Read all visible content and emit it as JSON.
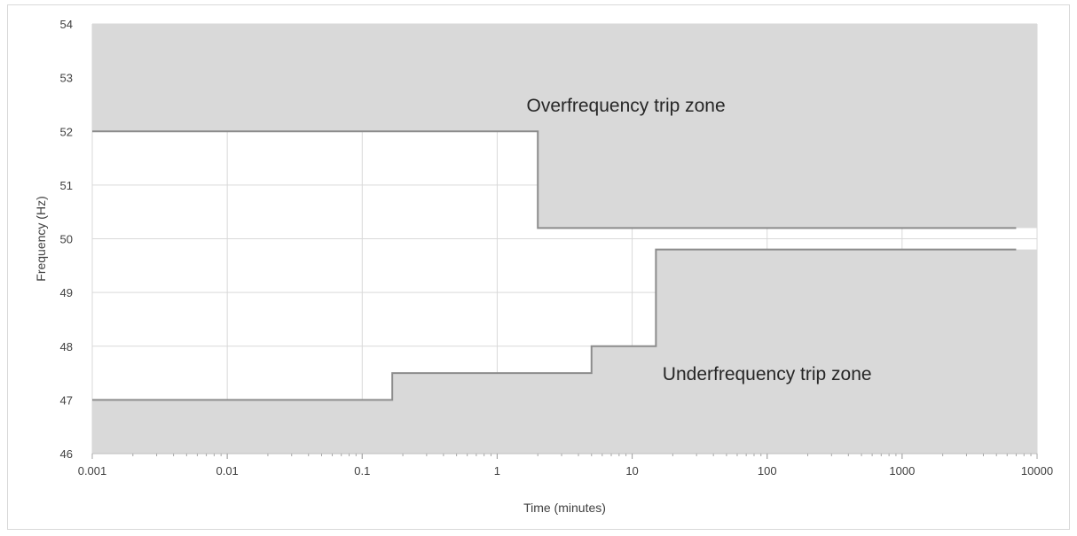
{
  "chart_data": {
    "type": "area",
    "xscale": "log",
    "xlim": [
      0.001,
      10000
    ],
    "ylim": [
      46,
      54
    ],
    "xlabel": "Time (minutes)",
    "ylabel": "Frequency (Hz)",
    "grid": true,
    "x_ticks": [
      "0.001",
      "0.01",
      "0.1",
      "1",
      "10",
      "100",
      "1000",
      "10000"
    ],
    "y_ticks": [
      "46",
      "47",
      "48",
      "49",
      "50",
      "51",
      "52",
      "53",
      "54"
    ],
    "series": [
      {
        "points": [
          {
            "x": 0.001,
            "y": 52
          },
          {
            "x": 2,
            "y": 52
          },
          {
            "x": 2,
            "y": 50.2
          },
          {
            "x": 7000,
            "y": 50.2
          }
        ]
      },
      {
        "points": [
          {
            "x": 0.001,
            "y": 47
          },
          {
            "x": 0.167,
            "y": 47
          },
          {
            "x": 0.167,
            "y": 47.5
          },
          {
            "x": 5,
            "y": 47.5
          },
          {
            "x": 5,
            "y": 48
          },
          {
            "x": 15,
            "y": 48
          },
          {
            "x": 15,
            "y": 49.8
          },
          {
            "x": 7000,
            "y": 49.8
          }
        ]
      }
    ],
    "annotations": [
      {
        "text": "Overfrequency  trip zone",
        "x": 9,
        "y": 52.5
      },
      {
        "text": "Underfrequency  trip zone",
        "x": 100,
        "y": 47.5
      }
    ],
    "colors": {
      "zone_fill": "#d9d9d9",
      "boundary_line": "#8c8c8c",
      "grid": "#d9d9d9",
      "text": "#404040"
    }
  }
}
